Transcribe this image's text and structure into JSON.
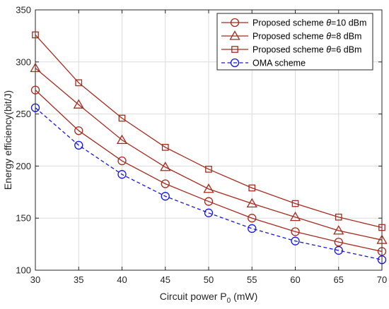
{
  "chart_data": {
    "type": "line",
    "xlabel": "Circuit power P",
    "xlabel_sub": "0",
    "xlabel_unit": " (mW)",
    "ylabel": "Energy efficiency(bit/J)",
    "x": [
      30,
      35,
      40,
      45,
      50,
      55,
      60,
      65,
      70
    ],
    "xlim": [
      30,
      70
    ],
    "ylim": [
      100,
      350
    ],
    "xticks": [
      30,
      35,
      40,
      45,
      50,
      55,
      60,
      65,
      70
    ],
    "yticks": [
      100,
      150,
      200,
      250,
      300,
      350
    ],
    "grid": true,
    "legend_position": "top-right",
    "series": [
      {
        "name": "Proposed scheme θ=10 dBm",
        "legend_prefix": "Proposed scheme ",
        "legend_theta": "θ",
        "legend_suffix": "=10 dBm",
        "marker": "circle",
        "line": "solid",
        "color": "#a52a1e",
        "values": [
          273,
          234,
          205,
          183,
          166,
          150,
          137,
          127,
          118
        ]
      },
      {
        "name": "Proposed scheme θ=8 dBm",
        "legend_prefix": "Proposed scheme ",
        "legend_theta": "θ",
        "legend_suffix": "=8 dBm",
        "marker": "triangle",
        "line": "solid",
        "color": "#a52a1e",
        "values": [
          294,
          259,
          225,
          199,
          178,
          164,
          151,
          138,
          129
        ]
      },
      {
        "name": "Proposed scheme θ=6 dBm",
        "legend_prefix": "Proposed scheme ",
        "legend_theta": "θ",
        "legend_suffix": "=6 dBm",
        "marker": "square",
        "line": "solid",
        "color": "#a52a1e",
        "values": [
          326,
          280,
          246,
          218,
          197,
          179,
          164,
          151,
          141
        ]
      },
      {
        "name": "OMA  scheme",
        "legend_prefix": "OMA  scheme",
        "legend_theta": "",
        "legend_suffix": "",
        "marker": "circle",
        "line": "dashed",
        "color": "#1414e6",
        "values": [
          256,
          220,
          192,
          171,
          155,
          140,
          128,
          119,
          110
        ]
      }
    ]
  }
}
